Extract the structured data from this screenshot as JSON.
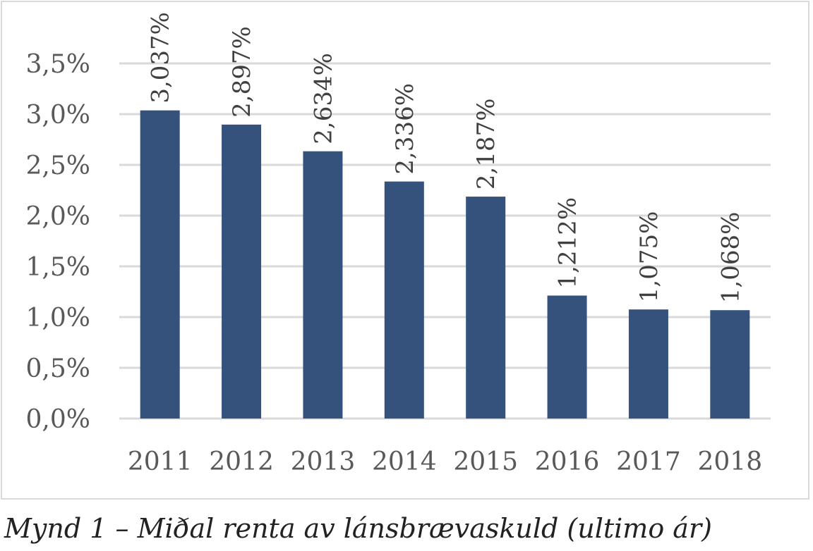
{
  "caption": "Mynd 1 – Miðal renta av lánsbrævaskuld (ultimo ár)",
  "colors": {
    "bar": "#34527c",
    "grid": "#d9d9d9",
    "axis_text": "#595959",
    "label_text": "#404040"
  },
  "chart_data": {
    "type": "bar",
    "categories": [
      "2011",
      "2012",
      "2013",
      "2014",
      "2015",
      "2016",
      "2017",
      "2018"
    ],
    "values": [
      3.037,
      2.897,
      2.634,
      2.336,
      2.187,
      1.212,
      1.075,
      1.068
    ],
    "data_labels": [
      "3,037%",
      "2,897%",
      "2,634%",
      "2,336%",
      "2,187%",
      "1,212%",
      "1,075%",
      "1,068%"
    ],
    "yticks": [
      "0,0%",
      "0,5%",
      "1,0%",
      "1,5%",
      "2,0%",
      "2,5%",
      "3,0%",
      "3,5%"
    ],
    "ylim": [
      0,
      3.5
    ],
    "grid": true,
    "legend": false,
    "title": "",
    "xlabel": "",
    "ylabel": ""
  }
}
